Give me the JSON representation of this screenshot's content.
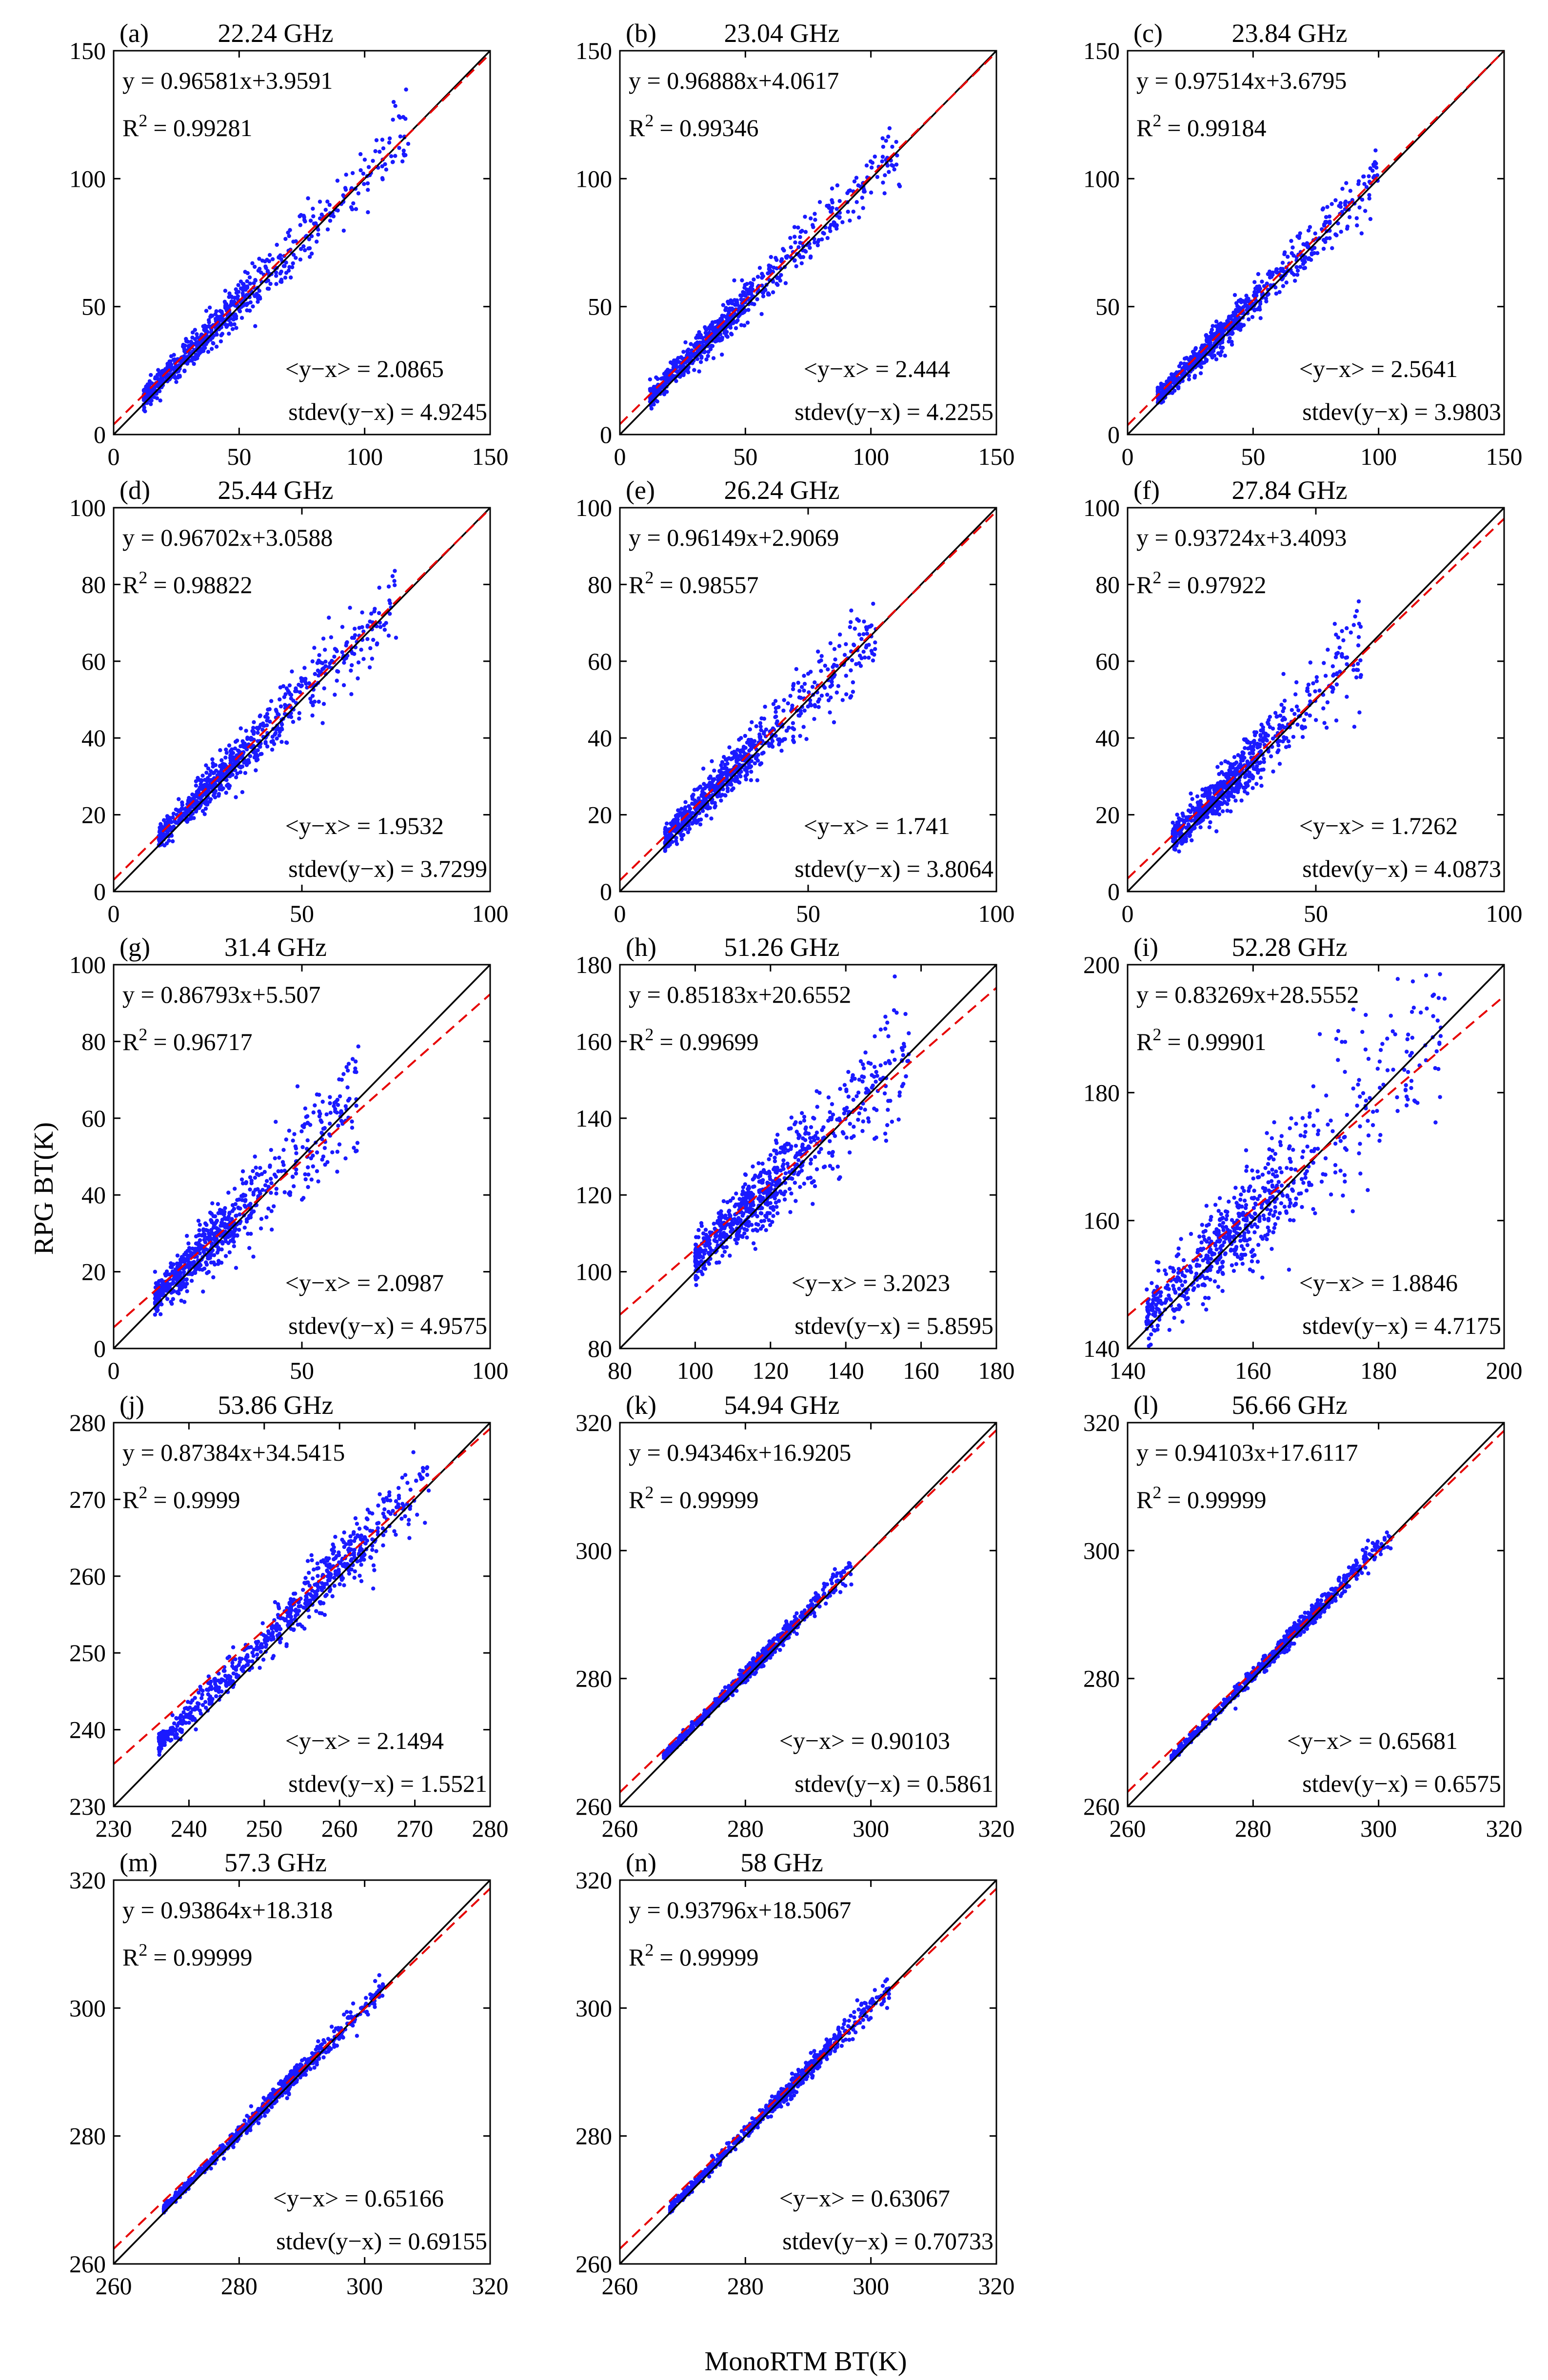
{
  "figure": {
    "ylabel": "RPG BT(K)",
    "xlabel": "MonoRTM BT(K)",
    "colors": {
      "points": "#1a1aff",
      "fit": "#e60000",
      "identity": "#000000"
    }
  },
  "chart_data": [
    {
      "type": "scatter",
      "panel": "(a)",
      "title": "22.24 GHz",
      "xlim": [
        0,
        150
      ],
      "ylim": [
        0,
        150
      ],
      "xticks": [
        0,
        50,
        100,
        150
      ],
      "yticks": [
        0,
        50,
        100,
        150
      ],
      "slope": 0.96581,
      "intercept": 3.9591,
      "fit_label": "y = 0.96581x+3.9591",
      "r2_label": "R",
      "r2_value": "= 0.99281",
      "mean_label": "<y−x> = 2.0865",
      "std_label": "stdev(y−x) = 4.9245",
      "points": {
        "xmin": 12,
        "xmax": 118,
        "center": 40,
        "spread": 4.9,
        "bias": 2.1
      }
    },
    {
      "type": "scatter",
      "panel": "(b)",
      "title": "23.04 GHz",
      "xlim": [
        0,
        150
      ],
      "ylim": [
        0,
        150
      ],
      "xticks": [
        0,
        50,
        100,
        150
      ],
      "yticks": [
        0,
        50,
        100,
        150
      ],
      "slope": 0.96888,
      "intercept": 4.0617,
      "fit_label": "y = 0.96888x+4.0617",
      "r2_label": "R",
      "r2_value": "= 0.99346",
      "mean_label": "<y−x> = 2.444",
      "std_label": "stdev(y−x) = 4.2255",
      "points": {
        "xmin": 12,
        "xmax": 112,
        "center": 38,
        "spread": 4.2,
        "bias": 2.4
      }
    },
    {
      "type": "scatter",
      "panel": "(c)",
      "title": "23.84 GHz",
      "xlim": [
        0,
        150
      ],
      "ylim": [
        0,
        150
      ],
      "xticks": [
        0,
        50,
        100,
        150
      ],
      "yticks": [
        0,
        50,
        100,
        150
      ],
      "slope": 0.97514,
      "intercept": 3.6795,
      "fit_label": "y = 0.97514x+3.6795",
      "r2_label": "R",
      "r2_value": "= 0.99184",
      "mean_label": "<y−x> = 2.5641",
      "std_label": "stdev(y−x) = 3.9803",
      "points": {
        "xmin": 12,
        "xmax": 100,
        "center": 36,
        "spread": 4.0,
        "bias": 2.6
      }
    },
    {
      "type": "scatter",
      "panel": "(d)",
      "title": "25.44 GHz",
      "xlim": [
        0,
        100
      ],
      "ylim": [
        0,
        100
      ],
      "xticks": [
        0,
        50,
        100
      ],
      "yticks": [
        0,
        20,
        40,
        60,
        80,
        100
      ],
      "slope": 0.96702,
      "intercept": 3.0588,
      "fit_label": "y = 0.96702x+3.0588",
      "r2_label": "R",
      "r2_value": "= 0.98822",
      "mean_label": "<y−x> = 1.9532",
      "std_label": "stdev(y−x) = 3.7299",
      "points": {
        "xmin": 12,
        "xmax": 75,
        "center": 30,
        "spread": 3.7,
        "bias": 2.0
      }
    },
    {
      "type": "scatter",
      "panel": "(e)",
      "title": "26.24 GHz",
      "xlim": [
        0,
        100
      ],
      "ylim": [
        0,
        100
      ],
      "xticks": [
        0,
        50,
        100
      ],
      "yticks": [
        0,
        20,
        40,
        60,
        80,
        100
      ],
      "slope": 0.96149,
      "intercept": 2.9069,
      "fit_label": "y = 0.96149x+2.9069",
      "r2_label": "R",
      "r2_value": "= 0.98557",
      "mean_label": "<y−x> = 1.741",
      "std_label": "stdev(y−x) = 3.8064",
      "points": {
        "xmin": 12,
        "xmax": 68,
        "center": 28,
        "spread": 3.8,
        "bias": 1.7
      }
    },
    {
      "type": "scatter",
      "panel": "(f)",
      "title": "27.84 GHz",
      "xlim": [
        0,
        100
      ],
      "ylim": [
        0,
        100
      ],
      "xticks": [
        0,
        50,
        100
      ],
      "yticks": [
        0,
        20,
        40,
        60,
        80,
        100
      ],
      "slope": 0.93724,
      "intercept": 3.4093,
      "fit_label": "y = 0.93724x+3.4093",
      "r2_label": "R",
      "r2_value": "= 0.97922",
      "mean_label": "<y−x> = 1.7262",
      "std_label": "stdev(y−x) = 4.0873",
      "points": {
        "xmin": 12,
        "xmax": 62,
        "center": 26,
        "spread": 4.1,
        "bias": 1.7
      }
    },
    {
      "type": "scatter",
      "panel": "(g)",
      "title": "31.4 GHz",
      "xlim": [
        0,
        100
      ],
      "ylim": [
        0,
        100
      ],
      "xticks": [
        0,
        50,
        100
      ],
      "yticks": [
        0,
        20,
        40,
        60,
        80,
        100
      ],
      "slope": 0.86793,
      "intercept": 5.507,
      "fit_label": "y = 0.86793x+5.507",
      "r2_label": "R",
      "r2_value": "= 0.96717",
      "mean_label": "<y−x> = 2.0987",
      "std_label": "stdev(y−x) = 4.9575",
      "points": {
        "xmin": 11,
        "xmax": 65,
        "center": 24,
        "spread": 5.0,
        "bias": 2.1
      }
    },
    {
      "type": "scatter",
      "panel": "(h)",
      "title": "51.26 GHz",
      "xlim": [
        80,
        180
      ],
      "ylim": [
        80,
        180
      ],
      "xticks": [
        80,
        100,
        120,
        140,
        160,
        180
      ],
      "yticks": [
        80,
        100,
        120,
        140,
        160,
        180
      ],
      "slope": 0.85183,
      "intercept": 20.6552,
      "fit_label": "y = 0.85183x+20.6552",
      "r2_label": "R",
      "r2_value": "= 0.99699",
      "mean_label": "<y−x> = 3.2023",
      "std_label": "stdev(y−x) = 5.8595",
      "points": {
        "xmin": 100,
        "xmax": 157,
        "center": 118,
        "spread": 5.9,
        "bias": 3.2
      }
    },
    {
      "type": "scatter",
      "panel": "(i)",
      "title": "52.28 GHz",
      "xlim": [
        140,
        200
      ],
      "ylim": [
        140,
        200
      ],
      "xticks": [
        140,
        160,
        180,
        200
      ],
      "yticks": [
        140,
        160,
        180,
        200
      ],
      "slope": 0.83269,
      "intercept": 28.5552,
      "fit_label": "y = 0.83269x+28.5552",
      "r2_label": "R",
      "r2_value": "= 0.99901",
      "mean_label": "<y−x> = 1.8846",
      "std_label": "stdev(y−x) = 4.7175",
      "points": {
        "xmin": 143,
        "xmax": 191,
        "center": 158,
        "spread": 4.7,
        "bias": 1.9
      }
    },
    {
      "type": "scatter",
      "panel": "(j)",
      "title": "53.86 GHz",
      "xlim": [
        230,
        280
      ],
      "ylim": [
        230,
        280
      ],
      "xticks": [
        230,
        240,
        250,
        260,
        270,
        280
      ],
      "yticks": [
        230,
        240,
        250,
        260,
        270,
        280
      ],
      "slope": 0.87384,
      "intercept": 34.5415,
      "fit_label": "y = 0.87384x+34.5415",
      "r2_label": "R",
      "r2_value": "= 0.9999",
      "mean_label": "<y−x> = 2.1494",
      "std_label": "stdev(y−x) = 1.5521",
      "points": {
        "xmin": 236,
        "xmax": 272,
        "center": 258,
        "spread": 1.5,
        "bias": 2.1
      }
    },
    {
      "type": "scatter",
      "panel": "(k)",
      "title": "54.94 GHz",
      "xlim": [
        260,
        320
      ],
      "ylim": [
        260,
        320
      ],
      "xticks": [
        260,
        280,
        300,
        320
      ],
      "yticks": [
        260,
        280,
        300,
        320
      ],
      "slope": 0.94346,
      "intercept": 16.9205,
      "fit_label": "y = 0.94346x+16.9205",
      "r2_label": "R",
      "r2_value": "= 0.99999",
      "mean_label": "<y−x> = 0.90103",
      "std_label": "stdev(y−x) = 0.5861",
      "points": {
        "xmin": 267,
        "xmax": 297,
        "center": 283,
        "spread": 0.6,
        "bias": 0.9
      }
    },
    {
      "type": "scatter",
      "panel": "(l)",
      "title": "56.66 GHz",
      "xlim": [
        260,
        320
      ],
      "ylim": [
        260,
        320
      ],
      "xticks": [
        260,
        280,
        300,
        320
      ],
      "yticks": [
        260,
        280,
        300,
        320
      ],
      "slope": 0.94103,
      "intercept": 17.6117,
      "fit_label": "y = 0.94103x+17.6117",
      "r2_label": "R",
      "r2_value": "= 0.99999",
      "mean_label": "<y−x> = 0.65681",
      "std_label": "stdev(y−x) = 0.6575",
      "points": {
        "xmin": 267,
        "xmax": 302,
        "center": 286,
        "spread": 0.65,
        "bias": 0.66
      }
    },
    {
      "type": "scatter",
      "panel": "(m)",
      "title": "57.3 GHz",
      "xlim": [
        260,
        320
      ],
      "ylim": [
        260,
        320
      ],
      "xticks": [
        260,
        280,
        300,
        320
      ],
      "yticks": [
        260,
        280,
        300,
        320
      ],
      "slope": 0.93864,
      "intercept": 18.318,
      "fit_label": "y = 0.93864x+18.318",
      "r2_label": "R",
      "r2_value": "= 0.99999",
      "mean_label": "<y−x> = 0.65166",
      "std_label": "stdev(y−x) = 0.69155",
      "points": {
        "xmin": 268,
        "xmax": 303,
        "center": 287,
        "spread": 0.69,
        "bias": 0.65
      }
    },
    {
      "type": "scatter",
      "panel": "(n)",
      "title": "58 GHz",
      "xlim": [
        260,
        320
      ],
      "ylim": [
        260,
        320
      ],
      "xticks": [
        260,
        280,
        300,
        320
      ],
      "yticks": [
        260,
        280,
        300,
        320
      ],
      "slope": 0.93796,
      "intercept": 18.5067,
      "fit_label": "y = 0.93796x+18.5067",
      "r2_label": "R",
      "r2_value": "= 0.99999",
      "mean_label": "<y−x> = 0.63067",
      "std_label": "stdev(y−x) = 0.70733",
      "points": {
        "xmin": 268,
        "xmax": 303,
        "center": 287,
        "spread": 0.71,
        "bias": 0.63
      }
    }
  ]
}
